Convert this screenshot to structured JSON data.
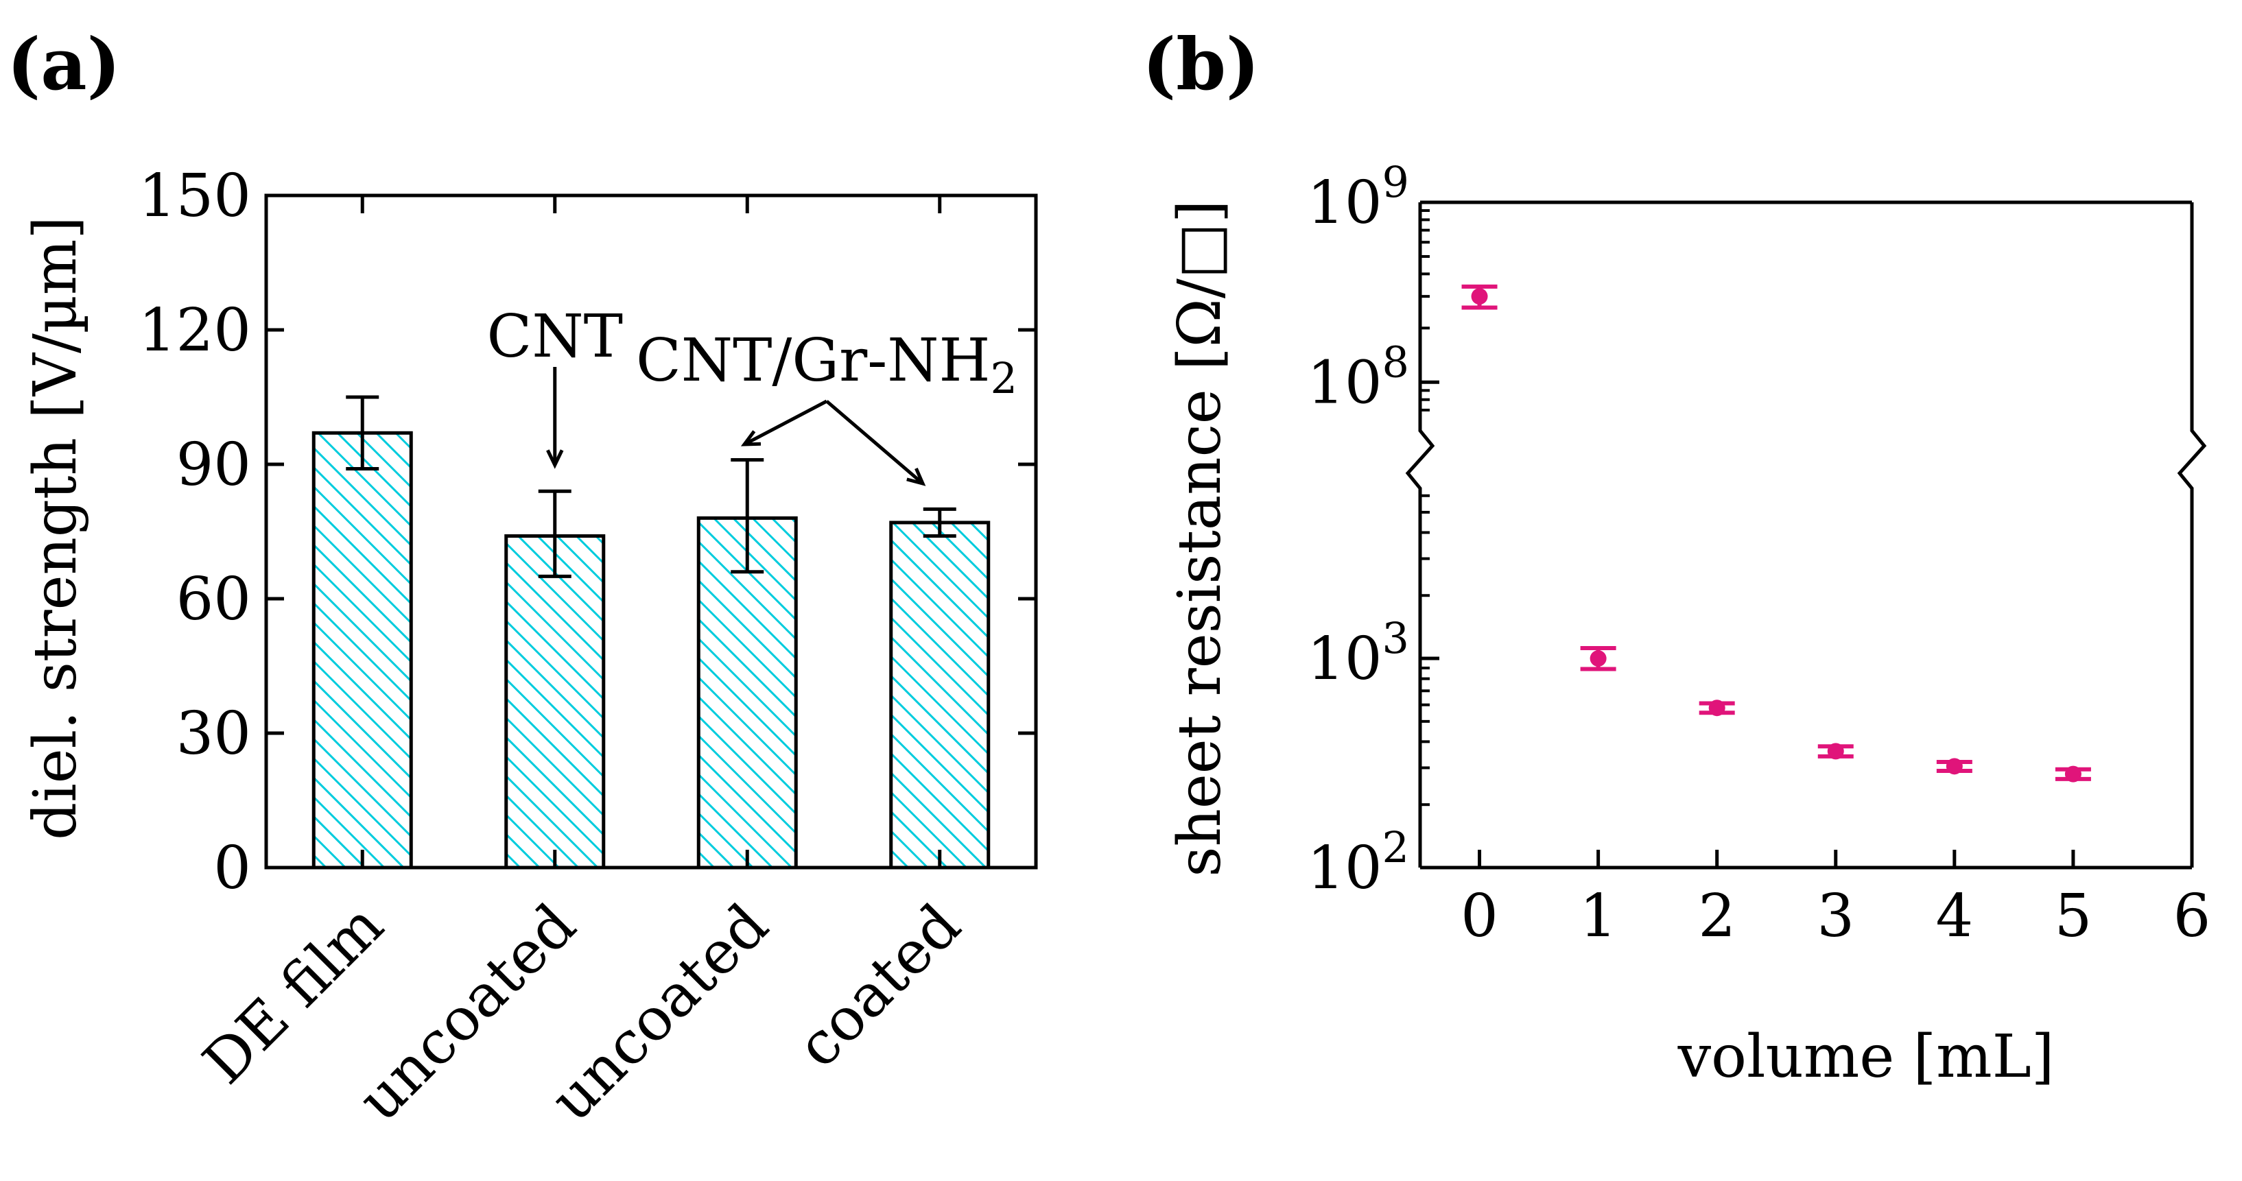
{
  "chart_data": [
    {
      "panel": "(a)",
      "type": "bar",
      "title": "",
      "xlabel": "",
      "ylabel": "diel. strength [V/µm]",
      "ylim": [
        0,
        150
      ],
      "yticks": [
        0,
        30,
        60,
        90,
        120,
        150
      ],
      "categories": [
        "DE film",
        "uncoated",
        "uncoated",
        "coated"
      ],
      "values": [
        97,
        74,
        78,
        77
      ],
      "errors_low": [
        89,
        65,
        66,
        74
      ],
      "errors_high": [
        105,
        84,
        91,
        80
      ],
      "bar_color": "#00CCDD",
      "annotations": [
        {
          "text": "CNT",
          "points_to": [
            1
          ]
        },
        {
          "text_main": "CNT/Gr-NH",
          "text_sub": "2",
          "points_to": [
            2,
            3
          ]
        }
      ]
    },
    {
      "panel": "(b)",
      "type": "scatter",
      "title": "",
      "xlabel": "volume [mL]",
      "ylabel": "sheet resistance [Ω/□]",
      "yscale": "log (broken axis between 10^3 and 10^8)",
      "xlim": [
        -0.5,
        6
      ],
      "xticks": [
        0,
        1,
        2,
        3,
        4,
        5,
        6
      ],
      "yticks": [
        {
          "base": "10",
          "exp": "2",
          "value": 100
        },
        {
          "base": "10",
          "exp": "3",
          "value": 1000
        },
        {
          "base": "10",
          "exp": "8",
          "value": 100000000
        },
        {
          "base": "10",
          "exp": "9",
          "value": 1000000000
        }
      ],
      "x": [
        0,
        1,
        2,
        3,
        4,
        5
      ],
      "y": [
        300000000,
        1000,
        580,
        360,
        305,
        280
      ],
      "yerr_low": [
        260000000,
        890,
        550,
        340,
        290,
        265
      ],
      "yerr_high": [
        340000000,
        1120,
        610,
        380,
        320,
        295
      ],
      "marker_color": "#E0147A"
    }
  ]
}
